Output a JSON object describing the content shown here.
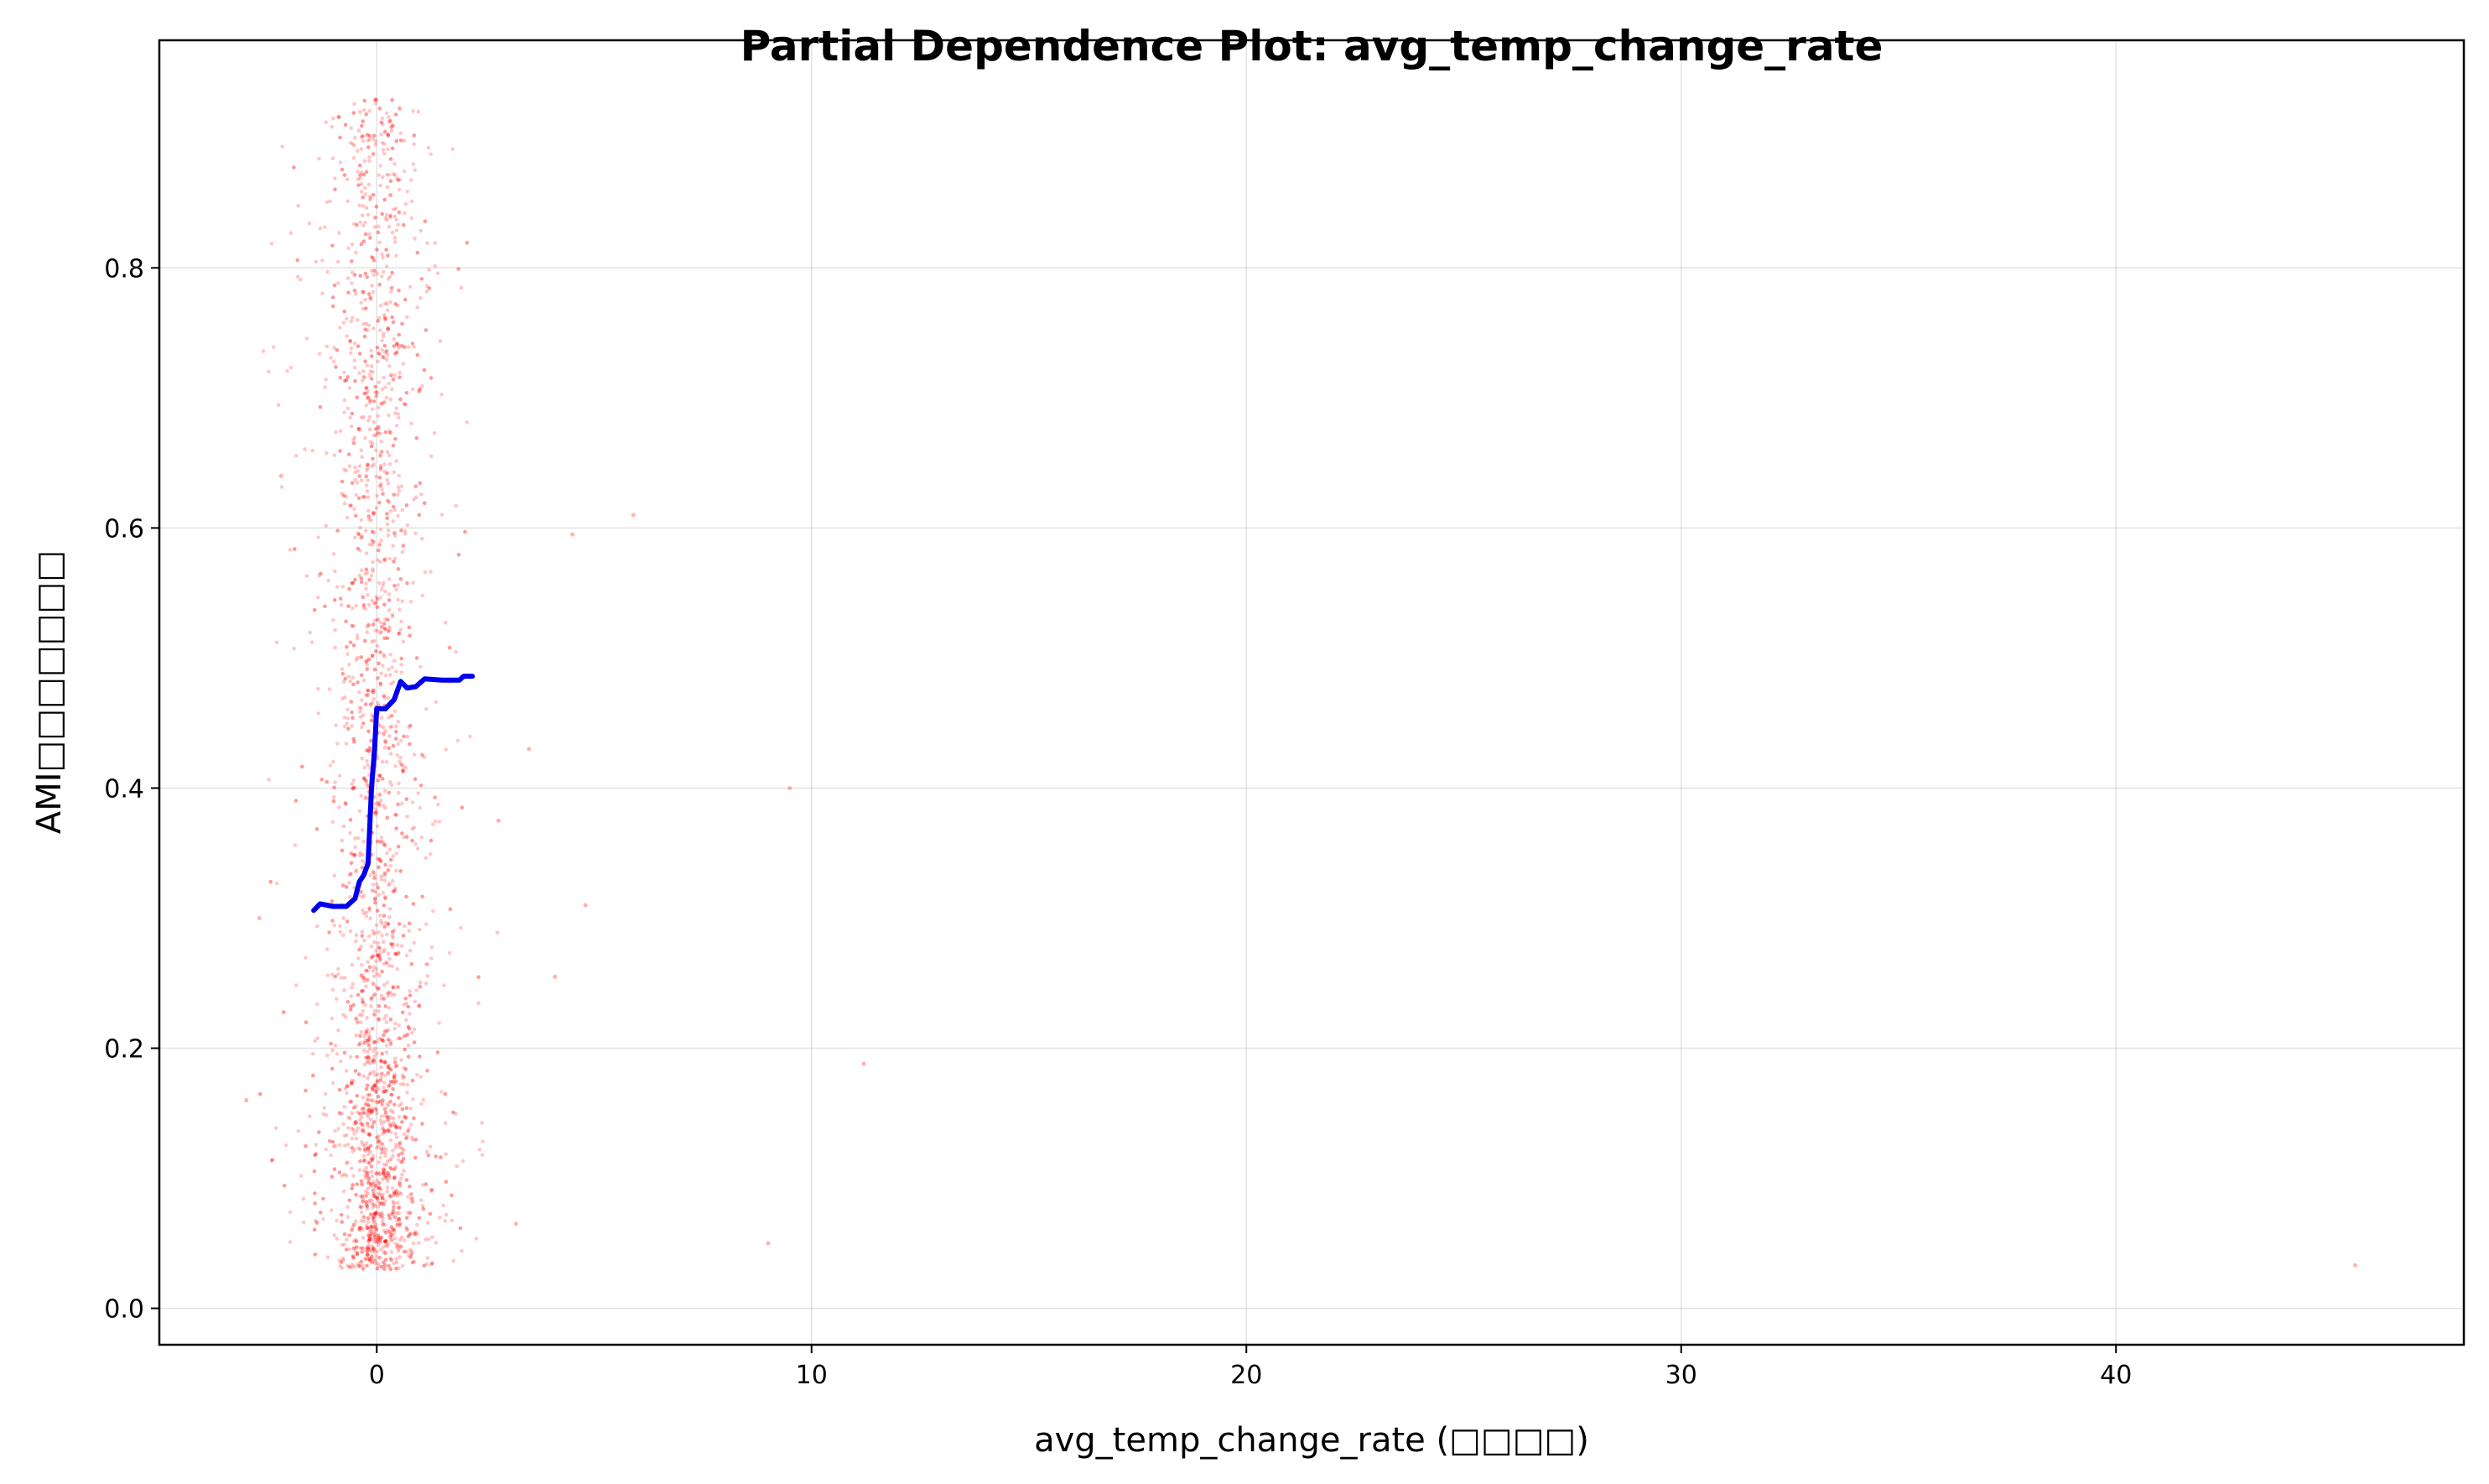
{
  "chart_data": {
    "type": "scatter",
    "title": "Partial Dependence Plot: avg_temp_change_rate",
    "xlabel": "avg_temp_change_rate (□□□□)",
    "ylabel": "AMI□□□□□□□",
    "xlim": [
      -5,
      48
    ],
    "ylim": [
      -0.028,
      0.975
    ],
    "xticks": [
      0,
      10,
      20,
      30,
      40
    ],
    "yticks": [
      0.0,
      0.2,
      0.4,
      0.6,
      0.8
    ],
    "xtick_labels": [
      "0",
      "10",
      "20",
      "30",
      "40"
    ],
    "ytick_labels": [
      "0.0",
      "0.2",
      "0.4",
      "0.6",
      "0.8"
    ],
    "grid": true,
    "colors": {
      "scatter": "#ff0000",
      "line": "#0000ee"
    },
    "series": [
      {
        "kind": "scatter",
        "description_points": "dense cloud of samples centered at x≈0, spread roughly x∈[-2.5, 2.5], y∈[0.02, 0.93], plus sparse outliers",
        "outliers": [
          {
            "x": 5.9,
            "y": 0.61
          },
          {
            "x": 4.5,
            "y": 0.595
          },
          {
            "x": 9.5,
            "y": 0.4
          },
          {
            "x": 11.2,
            "y": 0.188
          },
          {
            "x": 9.0,
            "y": 0.05
          },
          {
            "x": 45.5,
            "y": 0.033
          },
          {
            "x": 4.8,
            "y": 0.31
          },
          {
            "x": 4.1,
            "y": 0.255
          },
          {
            "x": 3.2,
            "y": 0.065
          },
          {
            "x": 3.5,
            "y": 0.43
          },
          {
            "x": 2.8,
            "y": 0.375
          },
          {
            "x": -2.7,
            "y": 0.3
          },
          {
            "x": -3.0,
            "y": 0.16
          },
          {
            "x": -2.2,
            "y": 0.64
          }
        ]
      },
      {
        "kind": "line",
        "points": [
          {
            "x": -1.45,
            "y": 0.306
          },
          {
            "x": -1.3,
            "y": 0.311
          },
          {
            "x": -1.0,
            "y": 0.309
          },
          {
            "x": -0.7,
            "y": 0.309
          },
          {
            "x": -0.5,
            "y": 0.315
          },
          {
            "x": -0.4,
            "y": 0.328
          },
          {
            "x": -0.3,
            "y": 0.333
          },
          {
            "x": -0.2,
            "y": 0.342
          },
          {
            "x": -0.12,
            "y": 0.4
          },
          {
            "x": -0.05,
            "y": 0.43
          },
          {
            "x": 0.0,
            "y": 0.461
          },
          {
            "x": 0.2,
            "y": 0.461
          },
          {
            "x": 0.4,
            "y": 0.468
          },
          {
            "x": 0.55,
            "y": 0.482
          },
          {
            "x": 0.7,
            "y": 0.477
          },
          {
            "x": 0.9,
            "y": 0.478
          },
          {
            "x": 1.1,
            "y": 0.484
          },
          {
            "x": 1.5,
            "y": 0.483
          },
          {
            "x": 1.9,
            "y": 0.483
          },
          {
            "x": 2.0,
            "y": 0.486
          },
          {
            "x": 2.2,
            "y": 0.486
          }
        ]
      }
    ]
  }
}
